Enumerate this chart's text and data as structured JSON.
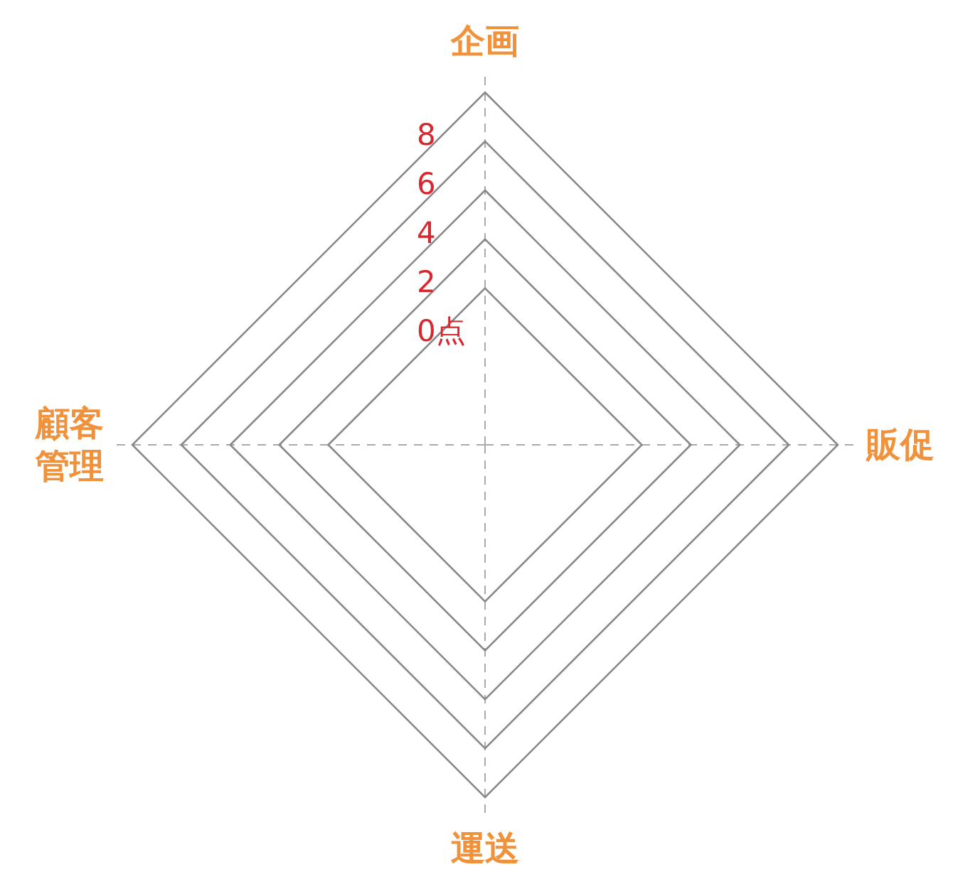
{
  "chart_data": {
    "type": "radar",
    "categories": [
      "企画",
      "販促",
      "運送",
      "顧客管理"
    ],
    "ylim": [
      -6.4,
      8
    ],
    "yticks": [
      {
        "value": 0,
        "label": "0点"
      },
      2,
      4,
      6,
      8
    ]
  }
}
